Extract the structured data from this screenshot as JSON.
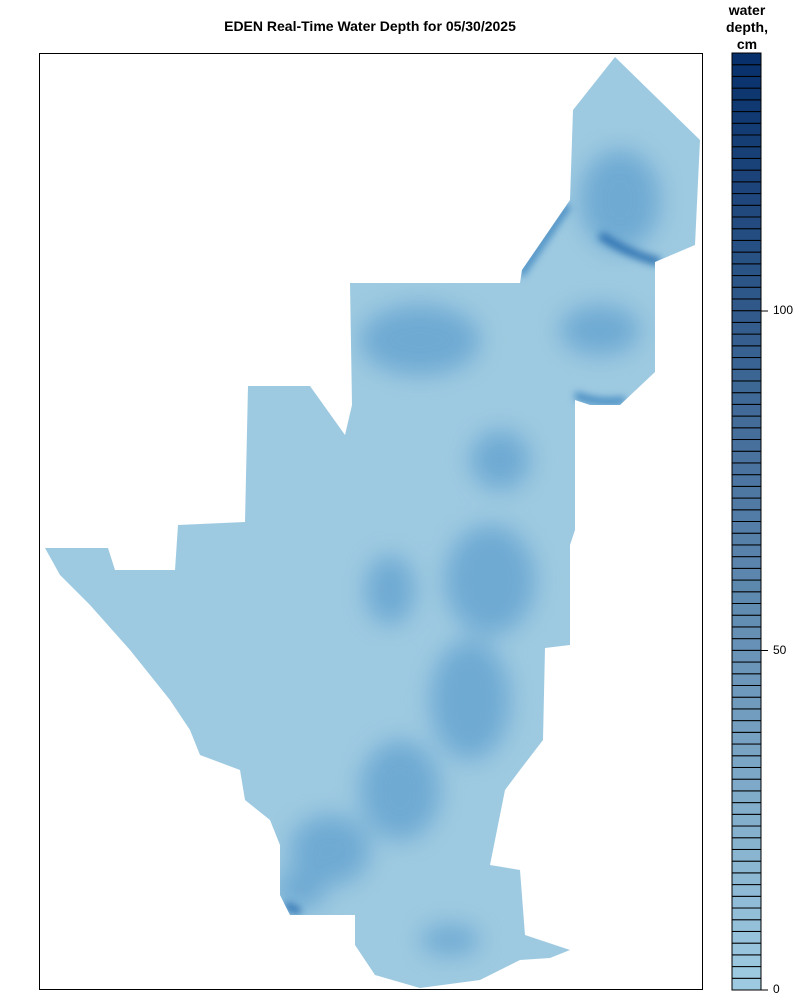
{
  "title": "EDEN Real-Time Water Depth for 05/30/2025",
  "legend": {
    "title_lines": [
      "water",
      "depth,",
      "cm"
    ],
    "ticks": [
      {
        "value": 0,
        "label": "0"
      },
      {
        "value": 50,
        "label": "50"
      },
      {
        "value": 100,
        "label": "100"
      }
    ],
    "range": [
      0,
      138
    ],
    "bands": 80,
    "color_low": "#9ecae1",
    "color_high": "#08306b"
  },
  "map": {
    "base_color": "#9ecae1",
    "deep_color": "#4a90c8"
  }
}
